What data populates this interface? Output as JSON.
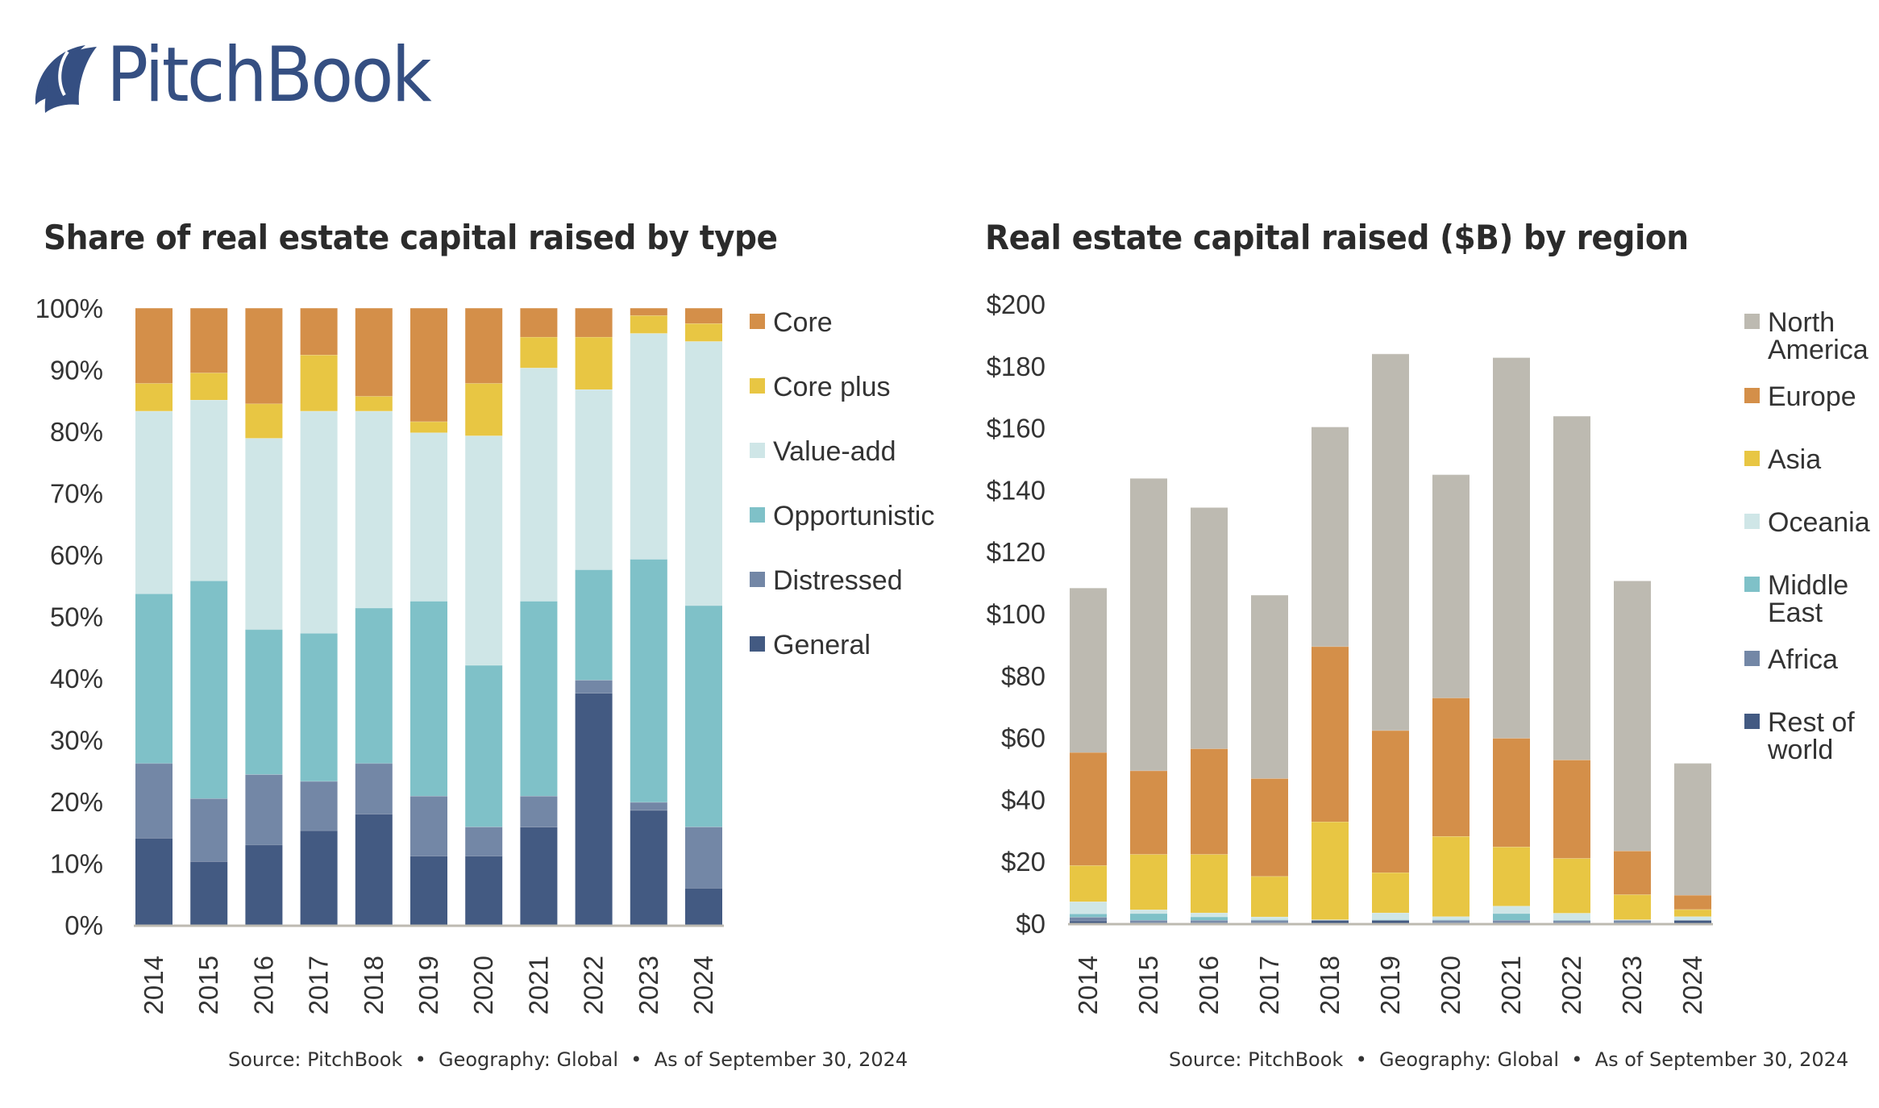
{
  "brand": {
    "name": "PitchBook",
    "color": "#354F82"
  },
  "source_left": "Source: PitchBook  •  Geography: Global  •  As of September 30, 2024",
  "source_right": "Source: PitchBook  •  Geography: Global  •  As of September 30, 2024",
  "chart_data": [
    {
      "type": "bar",
      "stacked": true,
      "title": "Share of real estate capital raised by type",
      "xlabel": "",
      "ylabel": "",
      "ylim": [
        0,
        100
      ],
      "y_ticks": [
        0,
        10,
        20,
        30,
        40,
        50,
        60,
        70,
        80,
        90,
        100
      ],
      "y_tick_labels": [
        "0%",
        "10%",
        "20%",
        "30%",
        "40%",
        "50%",
        "60%",
        "70%",
        "80%",
        "90%",
        "100%"
      ],
      "grid": false,
      "legend_position": "right",
      "categories": [
        "2014",
        "2015",
        "2016",
        "2017",
        "2018",
        "2019",
        "2020",
        "2021",
        "2022",
        "2023",
        "2024"
      ],
      "series": [
        {
          "name": "General",
          "color": "#435A82",
          "values": [
            14.1,
            10.3,
            13.0,
            15.3,
            18.0,
            11.2,
            11.2,
            15.9,
            37.6,
            18.6,
            6.0
          ]
        },
        {
          "name": "Distressed",
          "color": "#7387A6",
          "values": [
            12.1,
            10.2,
            11.4,
            8.0,
            8.2,
            9.7,
            4.7,
            5.0,
            2.1,
            1.3,
            9.9
          ]
        },
        {
          "name": "Opportunistic",
          "color": "#7FC1C8",
          "values": [
            27.5,
            35.3,
            23.5,
            24.0,
            25.2,
            31.6,
            26.2,
            31.6,
            17.9,
            39.4,
            35.9
          ]
        },
        {
          "name": "Value-add",
          "color": "#CFE6E7",
          "values": [
            29.6,
            29.3,
            31.0,
            36.0,
            31.9,
            27.3,
            37.2,
            37.8,
            29.2,
            36.6,
            42.8
          ]
        },
        {
          "name": "Core plus",
          "color": "#E8C643",
          "values": [
            4.5,
            4.4,
            5.6,
            9.1,
            2.4,
            1.8,
            8.5,
            5.0,
            8.5,
            2.9,
            2.9
          ]
        },
        {
          "name": "Core",
          "color": "#D48F49",
          "values": [
            12.2,
            10.5,
            15.5,
            7.6,
            14.3,
            18.4,
            12.2,
            4.7,
            4.7,
            1.2,
            2.5
          ]
        }
      ],
      "legend_order": [
        "Core",
        "Core plus",
        "Value-add",
        "Opportunistic",
        "Distressed",
        "General"
      ]
    },
    {
      "type": "bar",
      "stacked": true,
      "title": "Real estate capital raised ($B) by region",
      "xlabel": "",
      "ylabel": "",
      "ylim": [
        0,
        200
      ],
      "y_ticks": [
        0,
        20,
        40,
        60,
        80,
        100,
        120,
        140,
        160,
        180,
        200
      ],
      "y_tick_labels": [
        "$0",
        "$20",
        "$40",
        "$60",
        "$80",
        "$100",
        "$120",
        "$140",
        "$160",
        "$180",
        "$200"
      ],
      "grid": false,
      "legend_position": "right",
      "categories": [
        "2014",
        "2015",
        "2016",
        "2017",
        "2018",
        "2019",
        "2020",
        "2021",
        "2022",
        "2023",
        "2024"
      ],
      "series": [
        {
          "name": "Rest of world",
          "color": "#435A82",
          "values": [
            0.8,
            0.3,
            0.3,
            0.3,
            1.0,
            1.0,
            0.3,
            0.3,
            0.3,
            0.3,
            1.0
          ]
        },
        {
          "name": "Africa",
          "color": "#7387A6",
          "values": [
            1.2,
            0.7,
            0.7,
            0.7,
            0.0,
            0.0,
            0.7,
            0.7,
            0.6,
            0.7,
            0.0
          ]
        },
        {
          "name": "Middle East",
          "color": "#7FC1C8",
          "values": [
            1.1,
            2.2,
            1.1,
            0.2,
            0.0,
            0.2,
            0.2,
            2.2,
            0.2,
            0.0,
            0.0
          ]
        },
        {
          "name": "Oceania",
          "color": "#CFE6E7",
          "values": [
            3.9,
            1.2,
            1.3,
            0.9,
            0.2,
            2.2,
            1.0,
            2.4,
            2.2,
            0.2,
            1.2
          ]
        },
        {
          "name": "Asia",
          "color": "#E8C643",
          "values": [
            11.7,
            17.9,
            18.9,
            13.1,
            31.6,
            13.0,
            25.9,
            19.1,
            17.7,
            8.1,
            2.3
          ]
        },
        {
          "name": "Europe",
          "color": "#D48F49",
          "values": [
            36.5,
            27.0,
            34.1,
            31.6,
            56.6,
            45.9,
            44.7,
            35.1,
            31.8,
            14.1,
            4.6
          ]
        },
        {
          "name": "North America",
          "color": "#BDBAB1",
          "values": [
            53.1,
            94.4,
            77.9,
            59.2,
            70.9,
            121.6,
            72.1,
            122.9,
            111.0,
            87.2,
            42.6
          ]
        }
      ],
      "legend_order": [
        "North America",
        "Europe",
        "Asia",
        "Oceania",
        "Middle East",
        "Africa",
        "Rest of world"
      ],
      "legend_lines": {
        "North America": [
          "North",
          "America"
        ],
        "Europe": [
          "Europe"
        ],
        "Asia": [
          "Asia"
        ],
        "Oceania": [
          "Oceania"
        ],
        "Middle East": [
          "Middle",
          "East"
        ],
        "Africa": [
          "Africa"
        ],
        "Rest of world": [
          "Rest of",
          "world"
        ]
      }
    }
  ]
}
